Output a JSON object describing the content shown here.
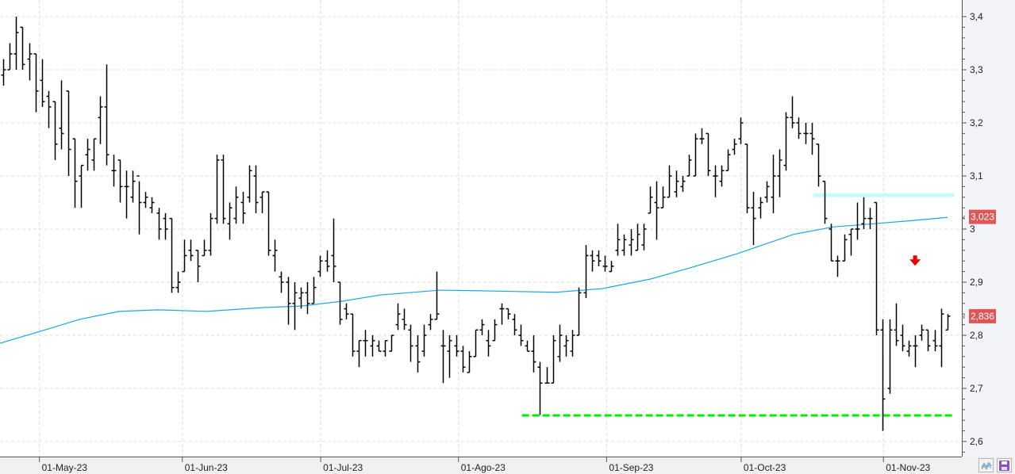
{
  "chart_data": {
    "type": "ohlc",
    "title": "",
    "ylim": [
      2.58,
      3.42
    ],
    "y_ticks": [
      {
        "v": 2.6,
        "label": "2,6"
      },
      {
        "v": 2.7,
        "label": "2,7"
      },
      {
        "v": 2.8,
        "label": "2,8"
      },
      {
        "v": 2.9,
        "label": "2,9"
      },
      {
        "v": 3.0,
        "label": "3"
      },
      {
        "v": 3.1,
        "label": "3,1"
      },
      {
        "v": 3.2,
        "label": "3,2"
      },
      {
        "v": 3.3,
        "label": "3,3"
      },
      {
        "v": 3.4,
        "label": "3,4"
      }
    ],
    "x_ticks": [
      {
        "bar": 5.6,
        "label": "01-May-23"
      },
      {
        "bar": 27.7,
        "label": "01-Jun-23"
      },
      {
        "bar": 49.1,
        "label": "01-Jul-23"
      },
      {
        "bar": 70.4,
        "label": "01-Ago-23"
      },
      {
        "bar": 93.3,
        "label": "01-Sep-23"
      },
      {
        "bar": 114.1,
        "label": "01-Oct-23"
      },
      {
        "bar": 136.1,
        "label": "01-Nov-23"
      }
    ],
    "bars_hloc_fields": [
      "high",
      "low",
      "open",
      "close"
    ],
    "bars": [
      [
        3.32,
        3.27,
        3.29,
        3.3
      ],
      [
        3.35,
        3.3,
        3.3,
        3.33
      ],
      [
        3.4,
        3.3,
        3.33,
        3.37
      ],
      [
        3.38,
        3.3,
        3.38,
        3.31
      ],
      [
        3.35,
        3.28,
        3.32,
        3.33
      ],
      [
        3.33,
        3.22,
        3.33,
        3.26
      ],
      [
        3.32,
        3.23,
        3.28,
        3.24
      ],
      [
        3.26,
        3.19,
        3.25,
        3.23
      ],
      [
        3.24,
        3.13,
        3.24,
        3.16
      ],
      [
        3.28,
        3.15,
        3.19,
        3.18
      ],
      [
        3.26,
        3.1,
        3.26,
        3.15
      ],
      [
        3.17,
        3.04,
        3.17,
        3.09
      ],
      [
        3.12,
        3.04,
        3.1,
        3.12
      ],
      [
        3.17,
        3.11,
        3.14,
        3.15
      ],
      [
        3.17,
        3.11,
        3.13,
        3.17
      ],
      [
        3.25,
        3.16,
        3.21,
        3.23
      ],
      [
        3.31,
        3.12,
        3.23,
        3.14
      ],
      [
        3.14,
        3.08,
        3.11,
        3.11
      ],
      [
        3.13,
        3.05,
        3.13,
        3.08
      ],
      [
        3.11,
        3.02,
        3.08,
        3.08
      ],
      [
        3.11,
        3.05,
        3.06,
        3.09
      ],
      [
        3.09,
        2.99,
        3.1,
        3.05
      ],
      [
        3.07,
        3.04,
        3.05,
        3.06
      ],
      [
        3.06,
        3.03,
        3.04,
        3.05
      ],
      [
        3.04,
        2.98,
        3.03,
        3.0
      ],
      [
        3.03,
        2.98,
        3.02,
        3.0
      ],
      [
        3.02,
        2.88,
        3.02,
        2.89
      ],
      [
        2.92,
        2.88,
        2.89,
        2.9
      ],
      [
        2.98,
        2.92,
        2.92,
        2.95
      ],
      [
        2.98,
        2.94,
        2.96,
        2.95
      ],
      [
        2.96,
        2.9,
        2.96,
        2.93
      ],
      [
        2.98,
        2.95,
        2.95,
        2.96
      ],
      [
        3.03,
        2.95,
        2.96,
        3.02
      ],
      [
        3.14,
        3.01,
        3.02,
        3.13
      ],
      [
        3.14,
        3.01,
        3.13,
        3.02
      ],
      [
        3.05,
        2.98,
        3.01,
        3.04
      ],
      [
        3.08,
        3.01,
        3.02,
        3.06
      ],
      [
        3.07,
        3.01,
        3.05,
        3.03
      ],
      [
        3.12,
        3.05,
        3.06,
        3.11
      ],
      [
        3.12,
        3.03,
        3.1,
        3.05
      ],
      [
        3.07,
        3.03,
        3.06,
        3.07
      ],
      [
        3.07,
        2.95,
        3.07,
        2.96
      ],
      [
        2.98,
        2.92,
        2.95,
        2.96
      ],
      [
        2.92,
        2.88,
        2.91,
        2.9
      ],
      [
        2.91,
        2.82,
        2.9,
        2.86
      ],
      [
        2.9,
        2.81,
        2.86,
        2.88
      ],
      [
        2.89,
        2.85,
        2.87,
        2.88
      ],
      [
        2.9,
        2.84,
        2.88,
        2.86
      ],
      [
        2.91,
        2.86,
        2.86,
        2.89
      ],
      [
        2.95,
        2.91,
        2.92,
        2.94
      ],
      [
        2.96,
        2.92,
        2.94,
        2.93
      ],
      [
        3.02,
        2.9,
        2.95,
        2.93
      ],
      [
        2.9,
        2.82,
        2.9,
        2.83
      ],
      [
        2.86,
        2.83,
        2.85,
        2.84
      ],
      [
        2.84,
        2.76,
        2.84,
        2.77
      ],
      [
        2.79,
        2.74,
        2.77,
        2.79
      ],
      [
        2.81,
        2.76,
        2.79,
        2.79
      ],
      [
        2.8,
        2.76,
        2.78,
        2.79
      ],
      [
        2.79,
        2.77,
        2.78,
        2.77
      ],
      [
        2.79,
        2.76,
        2.77,
        2.79
      ],
      [
        2.8,
        2.77,
        2.77,
        2.8
      ],
      [
        2.86,
        2.81,
        2.82,
        2.84
      ],
      [
        2.85,
        2.81,
        2.83,
        2.82
      ],
      [
        2.82,
        2.75,
        2.81,
        2.78
      ],
      [
        2.8,
        2.73,
        2.78,
        2.75
      ],
      [
        2.82,
        2.76,
        2.77,
        2.8
      ],
      [
        2.84,
        2.81,
        2.82,
        2.83
      ],
      [
        2.92,
        2.83,
        2.83,
        2.84
      ],
      [
        2.81,
        2.71,
        2.78,
        2.78
      ],
      [
        2.8,
        2.72,
        2.77,
        2.79
      ],
      [
        2.8,
        2.76,
        2.78,
        2.77
      ],
      [
        2.78,
        2.73,
        2.77,
        2.74
      ],
      [
        2.77,
        2.73,
        2.73,
        2.76
      ],
      [
        2.81,
        2.76,
        2.76,
        2.81
      ],
      [
        2.83,
        2.8,
        2.81,
        2.82
      ],
      [
        2.81,
        2.76,
        2.79,
        2.78
      ],
      [
        2.83,
        2.79,
        2.79,
        2.82
      ],
      [
        2.86,
        2.82,
        2.85,
        2.85
      ],
      [
        2.85,
        2.83,
        2.85,
        2.84
      ],
      [
        2.84,
        2.8,
        2.83,
        2.81
      ],
      [
        2.82,
        2.78,
        2.8,
        2.79
      ],
      [
        2.79,
        2.77,
        2.78,
        2.77
      ],
      [
        2.8,
        2.73,
        2.77,
        2.75
      ],
      [
        2.75,
        2.65,
        2.74,
        2.71
      ],
      [
        2.74,
        2.71,
        2.71,
        2.71
      ],
      [
        2.8,
        2.71,
        2.71,
        2.79
      ],
      [
        2.82,
        2.75,
        2.76,
        2.8
      ],
      [
        2.8,
        2.76,
        2.78,
        2.79
      ],
      [
        2.81,
        2.76,
        2.77,
        2.8
      ],
      [
        2.89,
        2.8,
        2.8,
        2.88
      ],
      [
        2.97,
        2.87,
        2.88,
        2.95
      ],
      [
        2.96,
        2.92,
        2.95,
        2.94
      ],
      [
        2.96,
        2.93,
        2.95,
        2.94
      ],
      [
        2.95,
        2.92,
        2.93,
        2.93
      ],
      [
        2.94,
        2.92,
        2.92,
        2.93
      ],
      [
        3.01,
        2.95,
        2.96,
        2.98
      ],
      [
        2.99,
        2.95,
        2.96,
        2.98
      ],
      [
        3.0,
        2.95,
        2.97,
        2.98
      ],
      [
        3.01,
        2.96,
        2.96,
        2.99
      ],
      [
        3.01,
        2.96,
        2.97,
        3.0
      ],
      [
        3.08,
        3.03,
        3.03,
        3.06
      ],
      [
        3.09,
        2.98,
        3.05,
        3.04
      ],
      [
        3.08,
        3.04,
        3.04,
        3.06
      ],
      [
        3.12,
        3.06,
        3.06,
        3.1
      ],
      [
        3.11,
        3.06,
        3.07,
        3.09
      ],
      [
        3.1,
        3.07,
        3.08,
        3.09
      ],
      [
        3.14,
        3.1,
        3.1,
        3.13
      ],
      [
        3.18,
        3.1,
        3.1,
        3.17
      ],
      [
        3.19,
        3.16,
        3.17,
        3.17
      ],
      [
        3.18,
        3.1,
        3.18,
        3.11
      ],
      [
        3.12,
        3.06,
        3.1,
        3.1
      ],
      [
        3.12,
        3.08,
        3.09,
        3.11
      ],
      [
        3.15,
        3.11,
        3.11,
        3.14
      ],
      [
        3.17,
        3.14,
        3.15,
        3.16
      ],
      [
        3.21,
        3.16,
        3.17,
        3.2
      ],
      [
        3.16,
        3.03,
        3.16,
        3.04
      ],
      [
        3.07,
        2.97,
        3.04,
        3.02
      ],
      [
        3.06,
        3.02,
        3.04,
        3.05
      ],
      [
        3.09,
        3.05,
        3.06,
        3.08
      ],
      [
        3.14,
        3.03,
        3.06,
        3.1
      ],
      [
        3.15,
        3.06,
        3.1,
        3.13
      ],
      [
        3.22,
        3.11,
        3.12,
        3.21
      ],
      [
        3.25,
        3.19,
        3.21,
        3.2
      ],
      [
        3.21,
        3.17,
        3.2,
        3.18
      ],
      [
        3.2,
        3.16,
        3.18,
        3.18
      ],
      [
        3.2,
        3.14,
        3.18,
        3.17
      ],
      [
        3.16,
        3.08,
        3.16,
        3.1
      ],
      [
        3.09,
        3.01,
        3.09,
        3.02
      ],
      [
        3.01,
        2.94,
        3.0,
        2.94
      ],
      [
        2.95,
        2.91,
        2.94,
        2.94
      ],
      [
        2.99,
        2.94,
        2.94,
        2.98
      ],
      [
        3.0,
        2.95,
        2.99,
        3.0
      ],
      [
        3.05,
        2.98,
        3.0,
        3.0
      ],
      [
        3.06,
        3.0,
        3.01,
        3.02
      ],
      [
        3.04,
        3.0,
        3.02,
        3.02
      ],
      [
        3.05,
        2.8,
        3.05,
        2.81
      ],
      [
        2.83,
        2.62,
        2.81,
        2.68
      ],
      [
        2.83,
        2.69,
        2.7,
        2.81
      ],
      [
        2.86,
        2.78,
        2.81,
        2.79
      ],
      [
        2.82,
        2.77,
        2.8,
        2.78
      ],
      [
        2.79,
        2.76,
        2.77,
        2.78
      ],
      [
        2.8,
        2.74,
        2.78,
        2.78
      ],
      [
        2.82,
        2.79,
        2.8,
        2.81
      ],
      [
        2.81,
        2.77,
        2.81,
        2.78
      ],
      [
        2.81,
        2.77,
        2.79,
        2.78
      ],
      [
        2.85,
        2.74,
        2.78,
        2.84
      ],
      [
        2.84,
        2.81,
        2.81,
        2.836
      ]
    ],
    "moving_average": {
      "color": "#1aa7e8",
      "points": [
        [
          -0.5,
          2.785
        ],
        [
          5.6,
          2.807
        ],
        [
          11.8,
          2.83
        ],
        [
          17.9,
          2.845
        ],
        [
          24,
          2.848
        ],
        [
          31.4,
          2.845
        ],
        [
          40,
          2.852
        ],
        [
          46.1,
          2.855
        ],
        [
          52.3,
          2.864
        ],
        [
          58.4,
          2.876
        ],
        [
          67.5,
          2.885
        ],
        [
          73.1,
          2.884
        ],
        [
          85.4,
          2.881
        ],
        [
          92.7,
          2.888
        ],
        [
          100.1,
          2.906
        ],
        [
          106.2,
          2.927
        ],
        [
          113.6,
          2.954
        ],
        [
          122.2,
          2.99
        ],
        [
          128.3,
          3.004
        ],
        [
          134.5,
          3.01
        ],
        [
          140.6,
          3.016
        ],
        [
          146,
          3.022
        ]
      ],
      "last_label": "3,023"
    },
    "last_price_label": "2,836",
    "support_line": {
      "value": 2.649,
      "from_bar": 80.2,
      "to_bar": 147,
      "color": "#00ee00"
    },
    "resistance_band": {
      "value": 3.064,
      "from_bar": 125.2,
      "to_bar": 147,
      "color": "#c8fafa"
    },
    "signal_arrow": {
      "bar": 141,
      "value": 2.94,
      "direction": "down",
      "color": "#ee0000"
    },
    "label_color": "#e05555"
  },
  "toolbar": {
    "icons": [
      "chart-type-icon",
      "save-icon"
    ]
  }
}
